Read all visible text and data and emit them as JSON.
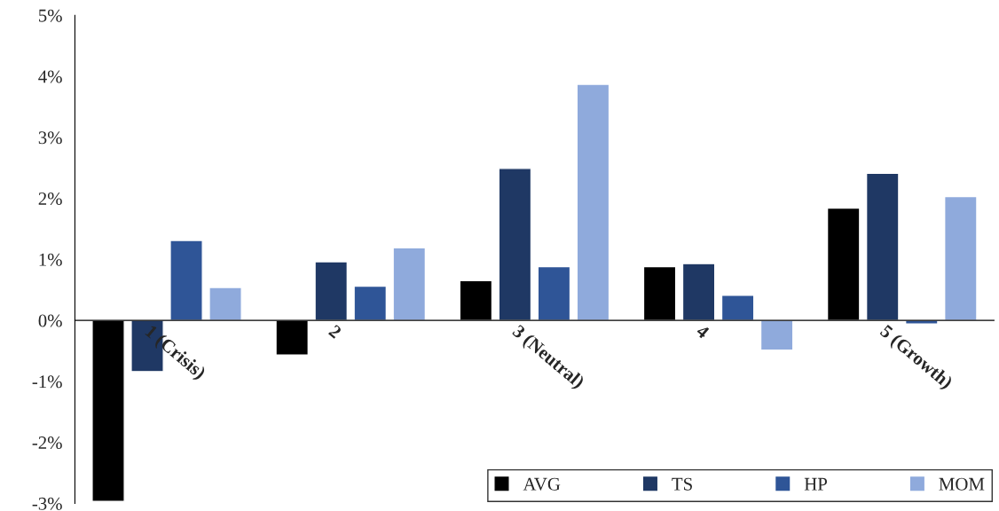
{
  "chart_data": {
    "type": "bar",
    "categories": [
      "1 (Crisis)",
      "2",
      "3 (Neutral)",
      "4",
      "5 (Growth)"
    ],
    "series": [
      {
        "name": "AVG",
        "color": "#000000",
        "values": [
          -2.97,
          -0.57,
          0.65,
          0.88,
          1.84
        ]
      },
      {
        "name": "TS",
        "color": "#1f3864",
        "values": [
          -0.84,
          0.96,
          2.49,
          0.93,
          2.41
        ]
      },
      {
        "name": "HP",
        "color": "#2f5597",
        "values": [
          1.31,
          0.56,
          0.88,
          0.41,
          -0.06
        ]
      },
      {
        "name": "MOM",
        "color": "#8faadc",
        "values": [
          0.54,
          1.19,
          3.87,
          -0.49,
          2.03
        ]
      }
    ],
    "ylim": [
      -3,
      5
    ],
    "yticks": [
      {
        "value": -3,
        "label": "-3%"
      },
      {
        "value": -2,
        "label": "-2%"
      },
      {
        "value": -1,
        "label": "-1%"
      },
      {
        "value": 0,
        "label": "0%"
      },
      {
        "value": 1,
        "label": "1%"
      },
      {
        "value": 2,
        "label": "2%"
      },
      {
        "value": 3,
        "label": "3%"
      },
      {
        "value": 4,
        "label": "4%"
      },
      {
        "value": 5,
        "label": "5%"
      }
    ],
    "grid": false,
    "legend": "bottom right"
  }
}
